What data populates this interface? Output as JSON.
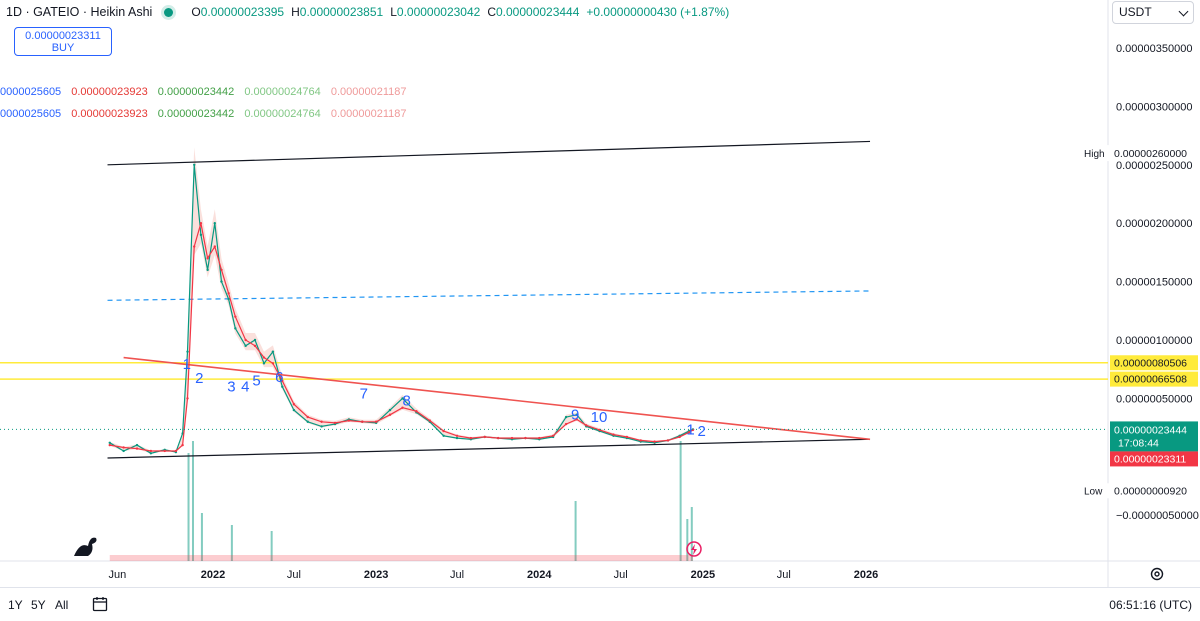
{
  "header": {
    "symbol": "1D · GATEIO · Heikin Ashi",
    "ohlc": [
      {
        "label": "O",
        "value": "0.00000023395"
      },
      {
        "label": "H",
        "value": "0.00000023851"
      },
      {
        "label": "L",
        "value": "0.00000023042"
      },
      {
        "label": "C",
        "value": "0.00000023444"
      },
      {
        "label": "",
        "value": "+0.00000000430 (+1.87%)"
      }
    ],
    "currency": "USDT"
  },
  "trade_box": {
    "price": "0.00000023311",
    "action": "BUY"
  },
  "indicator_rows": [
    {
      "values": [
        "0000025605",
        "0.00000023923",
        "0.00000023442",
        "0.00000024764",
        "0.00000021187"
      ]
    },
    {
      "values": [
        "0000025605",
        "0.00000023923",
        "0.00000023442",
        "0.00000024764",
        "0.00000021187"
      ]
    }
  ],
  "indicator_colors": [
    "#2962ff",
    "#e53935",
    "#43a047",
    "#81c784",
    "#ef9a9a"
  ],
  "price_badges": {
    "high_label": "High",
    "high_value": "0.00000260000",
    "low_label": "Low",
    "low_value": "0.00000000920",
    "yellow_1": "0.00000080506",
    "yellow_2": "0.00000066508",
    "last_price": "0.00000023444",
    "countdown": "17:08:44",
    "bid_price": "0.00000023311"
  },
  "bottom_bar": {
    "ranges": [
      "1Y",
      "5Y",
      "All"
    ],
    "clock": "06:51:16 (UTC)"
  },
  "colors": {
    "up": "#089981",
    "down": "#f23645",
    "accent": "#2962ff",
    "yellow": "#ffeb3b",
    "cloud": "#f5c6c0"
  },
  "chart_data": {
    "type": "line",
    "chart_style": "Heikin Ashi",
    "y_axis_ticks": [
      "0.00000350000",
      "0.00000300000",
      "0.00000250000",
      "0.00000200000",
      "0.00000150000",
      "0.00000100000",
      "0.00000050000",
      "−0.00000050000"
    ],
    "x_axis_ticks": [
      "Jun",
      "2022",
      "Jul",
      "2023",
      "Jul",
      "2024",
      "Jul",
      "2025",
      "Jul",
      "2026"
    ],
    "ylim": [
      -9e-07,
      3.8e-06
    ],
    "x": [
      "2021-05-15",
      "2021-06-15",
      "2021-07-15",
      "2021-08-15",
      "2021-09-15",
      "2021-10-10",
      "2021-10-25",
      "2021-11-05",
      "2021-11-20",
      "2021-12-05",
      "2021-12-20",
      "2022-01-05",
      "2022-01-20",
      "2022-02-05",
      "2022-02-20",
      "2022-03-15",
      "2022-04-05",
      "2022-04-25",
      "2022-05-15",
      "2022-06-05",
      "2022-07-01",
      "2022-08-01",
      "2022-09-01",
      "2022-10-01",
      "2022-11-01",
      "2022-12-01",
      "2023-01-01",
      "2023-02-01",
      "2023-03-01",
      "2023-04-01",
      "2023-05-01",
      "2023-06-01",
      "2023-07-01",
      "2023-08-01",
      "2023-09-01",
      "2023-10-01",
      "2023-11-01",
      "2023-12-01",
      "2024-01-01",
      "2024-02-01",
      "2024-03-01",
      "2024-03-25",
      "2024-04-15",
      "2024-05-15",
      "2024-06-15",
      "2024-07-15",
      "2024-08-15",
      "2024-09-15",
      "2024-10-15",
      "2024-11-10",
      "2024-12-01",
      "2024-12-10"
    ],
    "series": [
      {
        "values": [
          1.2e-07,
          5e-08,
          1e-07,
          3e-08,
          6e-08,
          4e-08,
          2e-07,
          9e-07,
          2.5e-06,
          1.9e-06,
          1.6e-06,
          2e-06,
          1.5e-06,
          1.35e-06,
          1.1e-06,
          9.5e-07,
          1e-06,
          8e-07,
          9e-07,
          6e-07,
          4e-07,
          3e-07,
          2.6e-07,
          2.8e-07,
          3.2e-07,
          3e-07,
          2.9e-07,
          4e-07,
          5e-07,
          3.8e-07,
          3e-07,
          1.8e-07,
          1.6e-07,
          1.5e-07,
          1.7e-07,
          1.6e-07,
          1.5e-07,
          1.6e-07,
          1.5e-07,
          1.7e-07,
          3.4e-07,
          3.6e-07,
          2.6e-07,
          2.2e-07,
          1.8e-07,
          1.6e-07,
          1.3e-07,
          1.2e-07,
          1.4e-07,
          1.8e-07,
          2.2e-07,
          2.3444e-07
        ]
      },
      {
        "values": [
          1e-07,
          8e-08,
          7e-08,
          5e-08,
          5e-08,
          5e-08,
          1e-07,
          5e-07,
          1.8e-06,
          2e-06,
          1.7e-06,
          1.8e-06,
          1.6e-06,
          1.4e-06,
          1.2e-06,
          1e-06,
          9.5e-07,
          8.5e-07,
          8e-07,
          6.5e-07,
          4.5e-07,
          3.4e-07,
          3e-07,
          2.9e-07,
          3.1e-07,
          3e-07,
          3e-07,
          3.6e-07,
          4.2e-07,
          3.9e-07,
          3.1e-07,
          2.2e-07,
          1.8e-07,
          1.6e-07,
          1.7e-07,
          1.6e-07,
          1.6e-07,
          1.6e-07,
          1.6e-07,
          1.8e-07,
          2.8e-07,
          3.2e-07,
          2.7e-07,
          2.3e-07,
          1.9e-07,
          1.7e-07,
          1.4e-07,
          1.3e-07,
          1.4e-07,
          1.7e-07,
          2.1e-07,
          2.3e-07
        ]
      }
    ],
    "trendlines": [
      {
        "points": [
          [
            "2021-05-10",
            2.5e-06
          ],
          [
            "2026-01-10",
            2.7e-06
          ]
        ]
      },
      {
        "points": [
          [
            "2021-05-10",
            -1e-08
          ],
          [
            "2026-01-10",
            1.5e-07
          ]
        ]
      },
      {
        "points": [
          [
            "2021-05-10",
            1.34e-06
          ],
          [
            "2026-01-10",
            1.42e-06
          ]
        ],
        "dashed": true
      },
      {
        "points": [
          [
            "2021-06-15",
            8.5e-07
          ],
          [
            "2026-01-10",
            1.5e-07
          ]
        ]
      }
    ],
    "horizontal_levels": [
      8.0506e-07,
      6.6508e-07
    ],
    "wave_labels": [
      {
        "text": "1",
        "x": "2021-10-25",
        "y": 7.5e-07
      },
      {
        "text": "2",
        "x": "2021-11-22",
        "y": 6.3e-07
      },
      {
        "text": "3",
        "x": "2022-02-02",
        "y": 5.6e-07
      },
      {
        "text": "4",
        "x": "2022-03-05",
        "y": 5.6e-07
      },
      {
        "text": "5",
        "x": "2022-03-30",
        "y": 6.1e-07
      },
      {
        "text": "6",
        "x": "2022-05-20",
        "y": 6.4e-07
      },
      {
        "text": "7",
        "x": "2022-11-25",
        "y": 5e-07
      },
      {
        "text": "8",
        "x": "2023-03-01",
        "y": 4.4e-07
      },
      {
        "text": "9",
        "x": "2024-03-12",
        "y": 3.2e-07
      },
      {
        "text": "10",
        "x": "2024-04-25",
        "y": 3e-07
      },
      {
        "text": "1",
        "x": "2024-11-25",
        "y": 1.9e-07
      },
      {
        "text": "2",
        "x": "2024-12-20",
        "y": 1.8e-07
      }
    ],
    "volume_spikes": [
      {
        "x": "2021-11-05",
        "v": 0.9
      },
      {
        "x": "2021-11-15",
        "v": 1.0
      },
      {
        "x": "2021-12-05",
        "v": 0.4
      },
      {
        "x": "2022-02-10",
        "v": 0.3
      },
      {
        "x": "2022-05-10",
        "v": 0.25
      },
      {
        "x": "2024-03-20",
        "v": 0.5
      },
      {
        "x": "2024-11-10",
        "v": 1.0
      },
      {
        "x": "2024-11-25",
        "v": 0.35
      },
      {
        "x": "2024-12-05",
        "v": 0.45
      }
    ],
    "grid": false,
    "legend_position": "top-left"
  }
}
